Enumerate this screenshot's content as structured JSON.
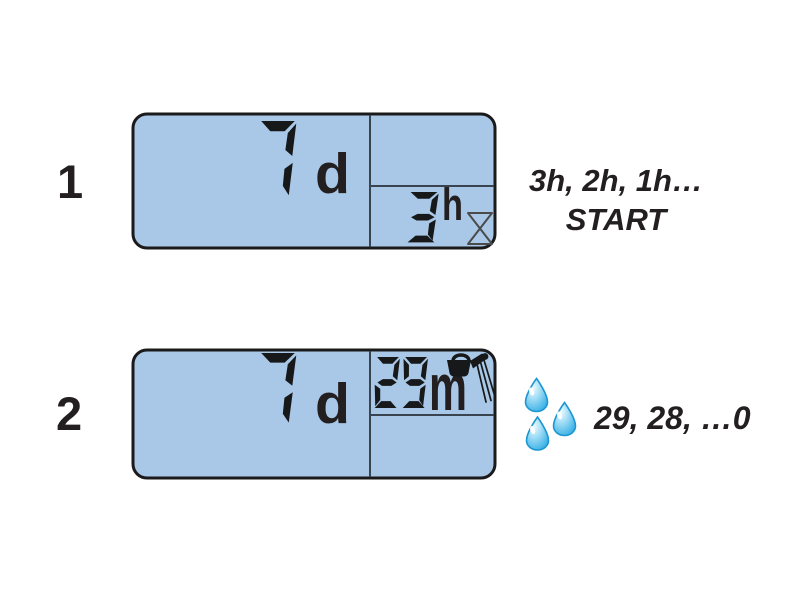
{
  "figure": {
    "type": "watering-timer-lcd-instructions",
    "steps": [
      {
        "label": "1",
        "lcd": {
          "days_value": "7",
          "days_unit": "d",
          "countdown_value": "3",
          "countdown_unit": "h",
          "status_icon": "hourglass-icon"
        },
        "annotation_lines": [
          "3h, 2h, 1h…",
          "START"
        ]
      },
      {
        "label": "2",
        "lcd": {
          "days_value": "7",
          "days_unit": "d",
          "countdown_value": "29",
          "countdown_unit": "m",
          "status_icon": "watering-can-icon"
        },
        "annotation_lines": [
          "29, 28, …0"
        ],
        "water_drops_count": 3
      }
    ]
  },
  "colors": {
    "lcd_bg": "#A9C8E7",
    "lcd_border": "#1A1A1A",
    "segment": "#16181A",
    "text": "#231F20",
    "divider": "#3A4450",
    "drop_stroke": "#1D96D2"
  }
}
